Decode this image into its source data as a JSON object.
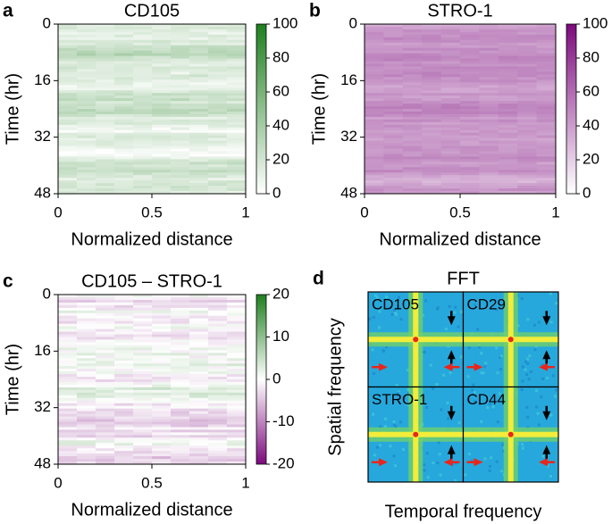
{
  "chart_data": [
    {
      "type": "heatmap",
      "panel_label": "a",
      "title": "CD105",
      "xlabel": "Normalized distance",
      "ylabel": "Time (hr)",
      "xlim": [
        0,
        1
      ],
      "xticks": [
        0,
        0.5,
        1
      ],
      "ylim": [
        0,
        48
      ],
      "y_inverted": true,
      "yticks": [
        0,
        16,
        32,
        48
      ],
      "colorbar": {
        "lim": [
          0,
          100
        ],
        "ticks": [
          0,
          20,
          40,
          60,
          80,
          100
        ],
        "colors": [
          "#ffffff",
          "#1f7f1f"
        ]
      }
    },
    {
      "type": "heatmap",
      "panel_label": "b",
      "title": "STRO-1",
      "xlabel": "Normalized distance",
      "ylabel": "Time (hr)",
      "xlim": [
        0,
        1
      ],
      "xticks": [
        0,
        0.5,
        1
      ],
      "ylim": [
        0,
        48
      ],
      "y_inverted": true,
      "yticks": [
        0,
        16,
        32,
        48
      ],
      "colorbar": {
        "lim": [
          0,
          100
        ],
        "ticks": [
          0,
          20,
          40,
          60,
          80,
          100
        ],
        "colors": [
          "#ffffff",
          "#7d0a7d"
        ]
      }
    },
    {
      "type": "heatmap",
      "panel_label": "c",
      "title": "CD105 – STRO-1",
      "xlabel": "Normalized distance",
      "ylabel": "Time (hr)",
      "xlim": [
        0,
        1
      ],
      "xticks": [
        0,
        0.5,
        1
      ],
      "ylim": [
        0,
        48
      ],
      "y_inverted": true,
      "yticks": [
        0,
        16,
        32,
        48
      ],
      "colorbar": {
        "lim": [
          -20,
          20
        ],
        "ticks": [
          -20,
          -10,
          0,
          10,
          20
        ],
        "colors": [
          "#7d0a7d",
          "#ffffff",
          "#1f7f1f"
        ]
      }
    },
    {
      "type": "fft",
      "panel_label": "d",
      "title": "FFT",
      "xlabel": "Temporal frequency",
      "ylabel": "Spatial frequency",
      "tiles": [
        "CD105",
        "CD29",
        "STRO-1",
        "CD44"
      ]
    }
  ]
}
